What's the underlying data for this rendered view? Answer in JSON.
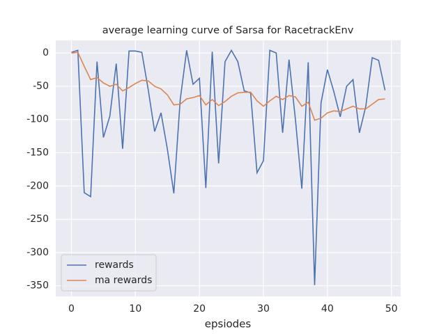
{
  "chart_data": {
    "type": "line",
    "title": "average learning curve of Sarsa for RacetrackEnv",
    "x_label": "epsiodes",
    "x": [
      0,
      1,
      2,
      3,
      4,
      5,
      6,
      7,
      8,
      9,
      10,
      11,
      12,
      13,
      14,
      15,
      16,
      17,
      18,
      19,
      20,
      21,
      22,
      23,
      24,
      25,
      26,
      27,
      28,
      29,
      30,
      31,
      32,
      33,
      34,
      35,
      36,
      37,
      38,
      39,
      40,
      41,
      42,
      43,
      44,
      45,
      46,
      47,
      48,
      49
    ],
    "series": [
      {
        "name": "rewards",
        "color": "#4c72b0",
        "values": [
          1,
          4,
          -210,
          -216,
          -13,
          -127,
          -95,
          -16,
          -144,
          3,
          3,
          1,
          -55,
          -118,
          -90,
          -145,
          -211,
          -70,
          4,
          -47,
          -38,
          -203,
          2,
          -166,
          -13,
          4,
          -13,
          -57,
          -60,
          -180,
          -162,
          4,
          0,
          -120,
          -10,
          -100,
          -204,
          -14,
          -349,
          -75,
          -25,
          -58,
          -96,
          -50,
          -40,
          -120,
          -80,
          -7,
          -11,
          -56
        ]
      },
      {
        "name": "ma rewards",
        "color": "#dd8452",
        "values": [
          0,
          1,
          -20,
          -40,
          -37,
          -45,
          -50,
          -47,
          -57,
          -52,
          -46,
          -41,
          -42,
          -50,
          -54,
          -63,
          -78,
          -77,
          -69,
          -67,
          -64,
          -78,
          -70,
          -79,
          -73,
          -65,
          -60,
          -59,
          -59,
          -72,
          -80,
          -72,
          -65,
          -70,
          -64,
          -66,
          -80,
          -74,
          -101,
          -98,
          -90,
          -87,
          -88,
          -84,
          -80,
          -84,
          -84,
          -77,
          -70,
          -69
        ]
      }
    ],
    "xlim": [
      -2.45,
      51.45
    ],
    "xticks": [
      0,
      10,
      20,
      30,
      40,
      50
    ],
    "ylim": [
      -366,
      19
    ],
    "yticks": [
      0,
      -50,
      -100,
      -150,
      -200,
      -250,
      -300,
      -350
    ],
    "grid": true,
    "legend": "lower left"
  }
}
